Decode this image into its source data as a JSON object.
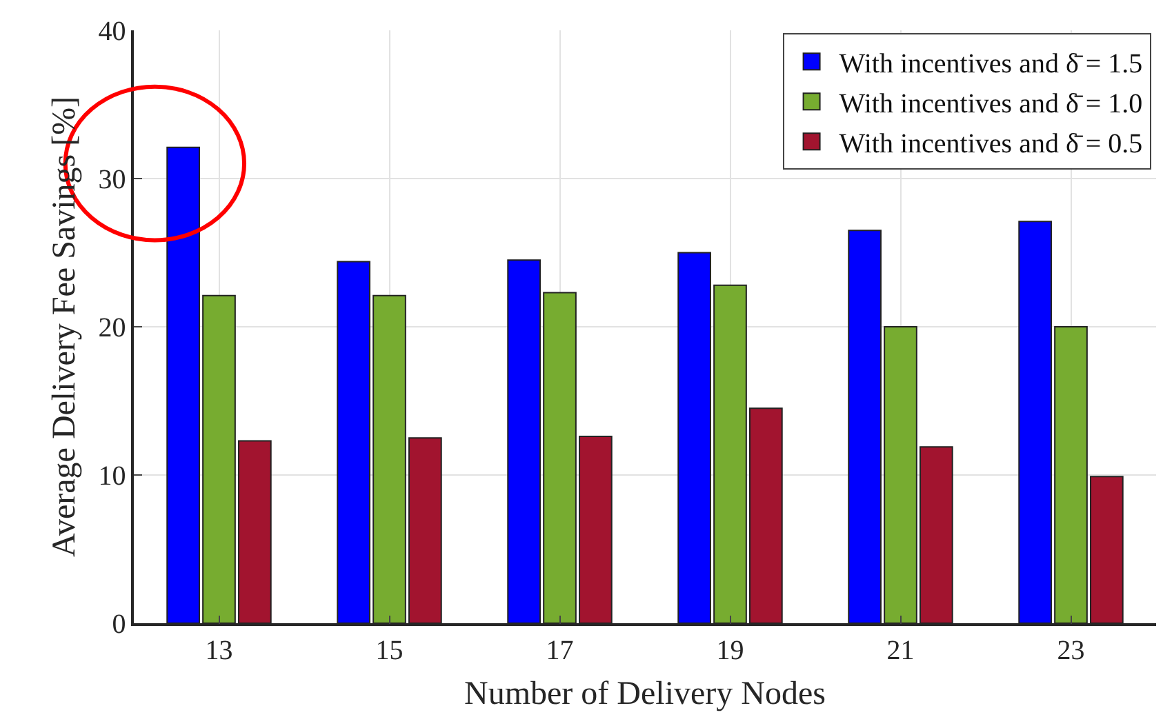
{
  "chart_data": {
    "type": "bar",
    "xlabel": "Number of Delivery Nodes",
    "ylabel": "Average Delivery Fee Savings [%]",
    "categories": [
      "13",
      "15",
      "17",
      "19",
      "21",
      "23"
    ],
    "series": [
      {
        "name": "With incentives and δ̄ = 1.5",
        "color": "#0000ff",
        "values": [
          32.1,
          24.4,
          24.5,
          25.0,
          26.5,
          27.1
        ]
      },
      {
        "name": "With incentives and δ̄ = 1.0",
        "color": "#77ac30",
        "values": [
          22.1,
          22.1,
          22.3,
          22.8,
          20.0,
          20.0
        ]
      },
      {
        "name": "With incentives and δ̄ = 0.5",
        "color": "#a2142f",
        "values": [
          12.3,
          12.5,
          12.6,
          14.5,
          11.9,
          9.9
        ]
      }
    ],
    "ylim": [
      0,
      40
    ],
    "yticks": [
      0,
      10,
      20,
      30,
      40
    ],
    "grid": true,
    "legend": "top right"
  }
}
